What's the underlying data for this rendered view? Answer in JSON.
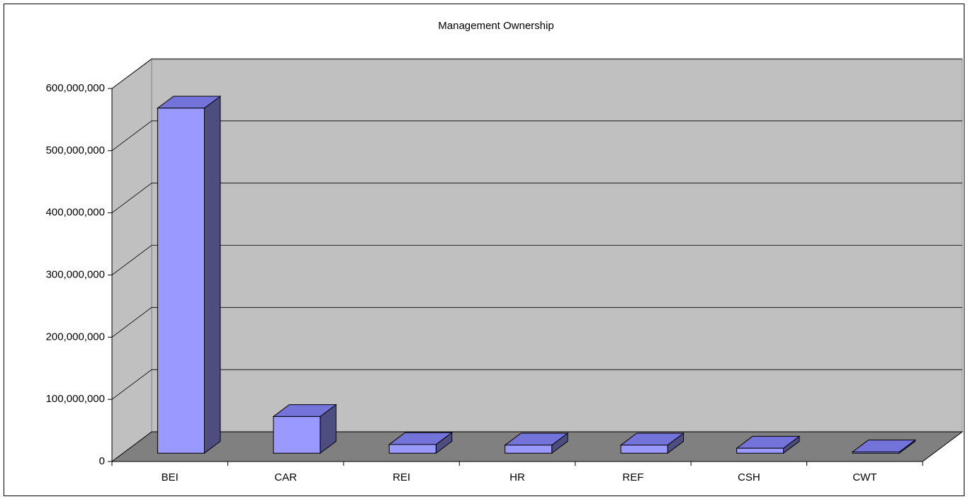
{
  "chart_data": {
    "type": "bar3d",
    "title": "Management Ownership",
    "categories": [
      "BEI",
      "CAR",
      "REI",
      "HR",
      "REF",
      "CSH",
      "CWT"
    ],
    "values": [
      555000000,
      59000000,
      14000000,
      13000000,
      13000000,
      8000000,
      2000000
    ],
    "color": "#9999ff",
    "ylim": [
      0,
      600000000
    ],
    "yticks": [
      0,
      {
        "value": 100000000,
        "label": "100,000,000"
      },
      {
        "value": 200000000,
        "label": "200,000,000"
      },
      {
        "value": 300000000,
        "label": "300,000,000"
      },
      {
        "value": 400000000,
        "label": "400,000,000"
      },
      {
        "value": 500000000,
        "label": "500,000,000"
      },
      {
        "value": 600000000,
        "label": "600,000,000"
      }
    ],
    "grid": true
  }
}
